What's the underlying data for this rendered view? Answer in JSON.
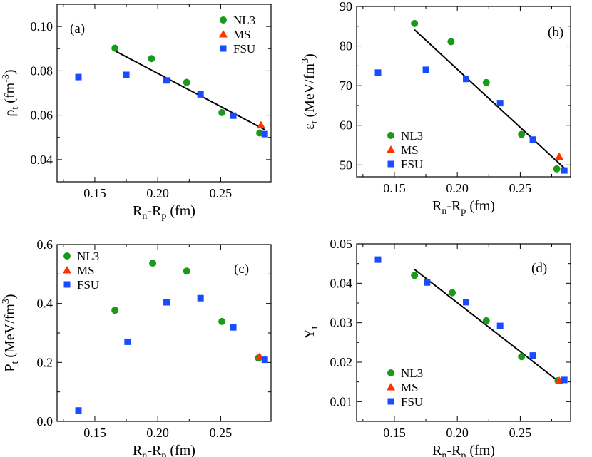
{
  "figure": {
    "colors": {
      "NL3": "#1a9a1a",
      "MS": "#ff3300",
      "FSU": "#1a4cff",
      "fit_line": "#000000"
    }
  },
  "chart_data": [
    {
      "panel_label": "(a)",
      "type": "scatter",
      "xlabel": {
        "main": "R",
        "sub1": "n",
        "mid": "-R",
        "sub2": "p",
        "tail": " (fm)"
      },
      "ylabel": {
        "main": "ρ",
        "sub": "t",
        "tail": " (fm",
        "sup": "-3",
        "close": ")"
      },
      "xlim": [
        0.12,
        0.29
      ],
      "ylim": [
        0.03,
        0.11
      ],
      "xticks": [
        0.15,
        0.2,
        0.25
      ],
      "xtick_labels": [
        "0.15",
        "0.20",
        "0.25"
      ],
      "yticks": [
        0.04,
        0.06,
        0.08,
        0.1
      ],
      "ytick_labels": [
        "0.04",
        "0.06",
        "0.08",
        "0.10"
      ],
      "legend": {
        "position": "top-right",
        "entries": [
          "NL3",
          "MS",
          "FSU"
        ]
      },
      "series": [
        {
          "name": "NL3",
          "marker": "circle",
          "x": [
            0.166,
            0.195,
            0.223,
            0.251,
            0.281
          ],
          "y": [
            0.0902,
            0.0855,
            0.0748,
            0.0612,
            0.052
          ]
        },
        {
          "name": "MS",
          "marker": "triangle",
          "x": [
            0.282
          ],
          "y": [
            0.0555
          ]
        },
        {
          "name": "FSU",
          "marker": "square",
          "x": [
            0.137,
            0.175,
            0.207,
            0.234,
            0.26,
            0.285
          ],
          "y": [
            0.0772,
            0.0782,
            0.0757,
            0.0694,
            0.0598,
            0.0515
          ]
        }
      ],
      "fit": {
        "x": [
          0.166,
          0.285
        ],
        "y": [
          0.089,
          0.0535
        ]
      }
    },
    {
      "panel_label": "(b)",
      "type": "scatter",
      "xlabel": {
        "main": "R",
        "sub1": "n",
        "mid": "-R",
        "sub2": "p",
        "tail": " (fm)"
      },
      "ylabel": {
        "main": "ε",
        "sub": "t",
        "tail": " (MeV/fm",
        "sup": "3",
        "close": ")"
      },
      "xlim": [
        0.12,
        0.29
      ],
      "ylim": [
        47,
        90
      ],
      "xticks": [
        0.15,
        0.2,
        0.25
      ],
      "xtick_labels": [
        "0.15",
        "0.20",
        "0.25"
      ],
      "yticks": [
        50,
        60,
        70,
        80,
        90
      ],
      "ytick_labels": [
        "50",
        "60",
        "70",
        "80",
        "90"
      ],
      "legend": {
        "position": "bottom-left",
        "entries": [
          "NL3",
          "MS",
          "FSU"
        ]
      },
      "series": [
        {
          "name": "NL3",
          "marker": "circle",
          "x": [
            0.166,
            0.195,
            0.223,
            0.251,
            0.279
          ],
          "y": [
            85.7,
            81.1,
            70.8,
            57.7,
            49.0
          ]
        },
        {
          "name": "MS",
          "marker": "triangle",
          "x": [
            0.281
          ],
          "y": [
            52.1
          ]
        },
        {
          "name": "FSU",
          "marker": "square",
          "x": [
            0.137,
            0.175,
            0.207,
            0.234,
            0.26,
            0.285
          ],
          "y": [
            73.3,
            74.0,
            71.7,
            65.6,
            56.4,
            48.6
          ]
        }
      ],
      "fit": {
        "x": [
          0.166,
          0.285
        ],
        "y": [
          84.1,
          49.2
        ]
      }
    },
    {
      "panel_label": "(c)",
      "type": "scatter",
      "xlabel": {
        "main": "R",
        "sub1": "n",
        "mid": "-R",
        "sub2": "p",
        "tail": " (fm)"
      },
      "ylabel": {
        "main": "P",
        "sub": "t",
        "tail": " (MeV/fm",
        "sup": "3",
        "close": ")"
      },
      "xlim": [
        0.12,
        0.29
      ],
      "ylim": [
        0.0,
        0.6
      ],
      "xticks": [
        0.15,
        0.2,
        0.25
      ],
      "xtick_labels": [
        "0.15",
        "0.20",
        "0.25"
      ],
      "yticks": [
        0.0,
        0.2,
        0.4,
        0.6
      ],
      "ytick_labels": [
        "0.0",
        "0.2",
        "0.4",
        "0.6"
      ],
      "legend": {
        "position": "top-left",
        "entries": [
          "NL3",
          "MS",
          "FSU"
        ]
      },
      "series": [
        {
          "name": "NL3",
          "marker": "circle",
          "x": [
            0.166,
            0.196,
            0.223,
            0.251,
            0.28
          ],
          "y": [
            0.377,
            0.537,
            0.51,
            0.339,
            0.215
          ]
        },
        {
          "name": "MS",
          "marker": "triangle",
          "x": [
            0.281
          ],
          "y": [
            0.22
          ]
        },
        {
          "name": "FSU",
          "marker": "square",
          "x": [
            0.137,
            0.176,
            0.207,
            0.234,
            0.26,
            0.285
          ],
          "y": [
            0.037,
            0.27,
            0.404,
            0.418,
            0.319,
            0.209
          ]
        }
      ],
      "fit": null
    },
    {
      "panel_label": "(d)",
      "type": "scatter",
      "xlabel": {
        "main": "R",
        "sub1": "n",
        "mid": "-R",
        "sub2": "p",
        "tail": " (fm)"
      },
      "ylabel": {
        "main": "Y",
        "sub": "t",
        "tail": "",
        "sup": "",
        "close": ""
      },
      "xlim": [
        0.12,
        0.29
      ],
      "ylim": [
        0.005,
        0.05
      ],
      "xticks": [
        0.15,
        0.2,
        0.25
      ],
      "xtick_labels": [
        "0.15",
        "0.20",
        "0.25"
      ],
      "yticks": [
        0.01,
        0.02,
        0.03,
        0.04,
        0.05
      ],
      "ytick_labels": [
        "0.01",
        "0.02",
        "0.03",
        "0.04",
        "0.05"
      ],
      "legend": {
        "position": "bottom-left",
        "entries": [
          "NL3",
          "MS",
          "FSU"
        ]
      },
      "series": [
        {
          "name": "NL3",
          "marker": "circle",
          "x": [
            0.166,
            0.196,
            0.223,
            0.251,
            0.28
          ],
          "y": [
            0.042,
            0.0376,
            0.0305,
            0.0214,
            0.0153
          ]
        },
        {
          "name": "MS",
          "marker": "triangle",
          "x": [
            0.281
          ],
          "y": [
            0.0153
          ]
        },
        {
          "name": "FSU",
          "marker": "square",
          "x": [
            0.137,
            0.176,
            0.207,
            0.234,
            0.26,
            0.285
          ],
          "y": [
            0.046,
            0.0402,
            0.0352,
            0.0292,
            0.0217,
            0.0155
          ]
        }
      ],
      "fit": {
        "x": [
          0.166,
          0.281
        ],
        "y": [
          0.0435,
          0.015
        ]
      }
    }
  ]
}
